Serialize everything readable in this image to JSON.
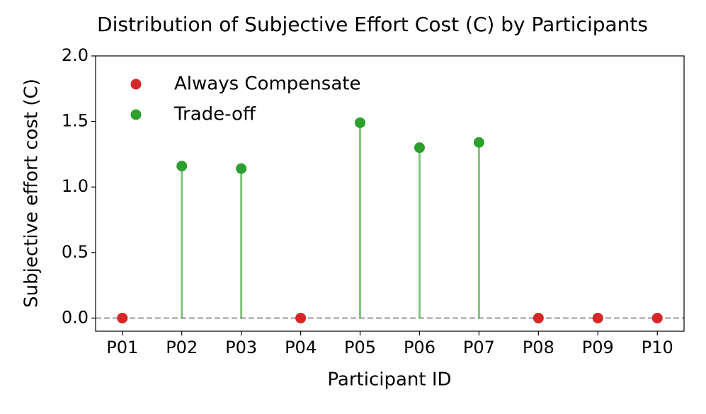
{
  "chart_data": {
    "type": "stem",
    "title": "Distribution of Subjective Effort Cost (C) by Participants",
    "x_label": "Participant ID",
    "y_label": "Subjective effort cost (C)",
    "categories": [
      "P01",
      "P02",
      "P03",
      "P04",
      "P05",
      "P06",
      "P07",
      "P08",
      "P09",
      "P10"
    ],
    "series": [
      {
        "name": "Always Compensate",
        "color": "#d62728",
        "values": [
          0,
          null,
          null,
          0,
          null,
          null,
          null,
          0,
          0,
          0
        ]
      },
      {
        "name": "Trade-off",
        "color": "#2ca02c",
        "values": [
          null,
          1.16,
          1.14,
          null,
          1.49,
          1.3,
          1.34,
          null,
          null,
          null
        ]
      }
    ],
    "ylim": [
      -0.1,
      2.0
    ],
    "yticks": [
      {
        "value": 0,
        "label": "0.0"
      },
      0.5,
      {
        "value": 1,
        "label": "1.0"
      },
      1.5,
      {
        "value": 2,
        "label": "2.0"
      }
    ],
    "hline": 0,
    "legend": "upper-left"
  }
}
